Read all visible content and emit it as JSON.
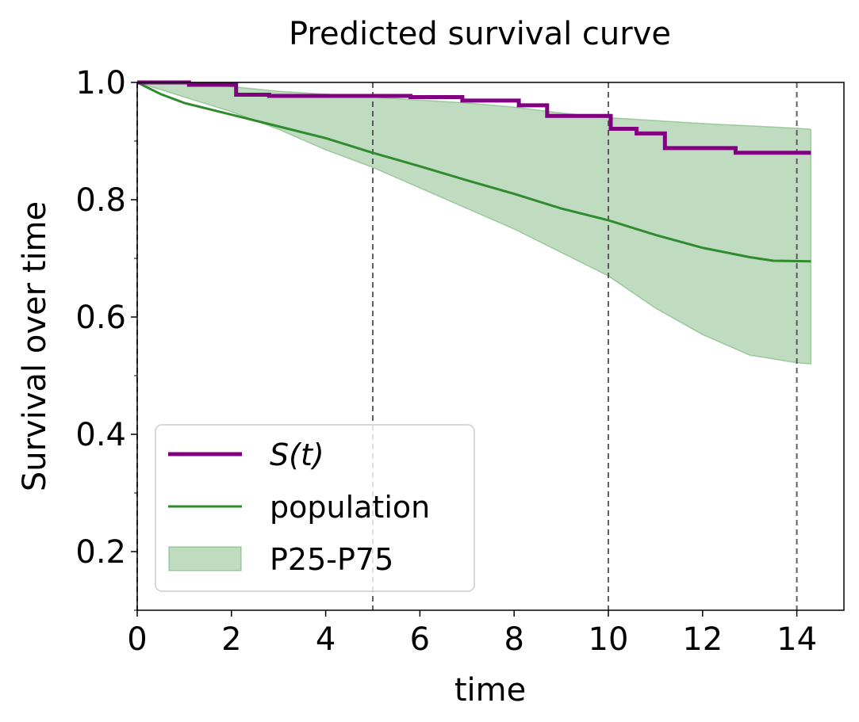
{
  "chart_data": {
    "type": "line",
    "title": "Predicted survival curve",
    "xlabel": "time",
    "ylabel": "Survival over time",
    "xlim": [
      0,
      15
    ],
    "ylim": [
      0.1,
      1.0
    ],
    "x_ticks": [
      "0",
      "2",
      "4",
      "6",
      "8",
      "10",
      "12",
      "14"
    ],
    "y_ticks": [
      "0.2",
      "0.4",
      "0.6",
      "0.8",
      "1.0"
    ],
    "vlines": [
      0,
      5,
      10,
      14
    ],
    "legend_position": "lower-left",
    "colors": {
      "st": "#800080",
      "population": "#2e8b2e",
      "band_fill": "#2e8b2e"
    },
    "series": [
      {
        "name": "S(t)",
        "style": "step",
        "x": [
          0,
          1.1,
          2.1,
          2.8,
          5.8,
          6.9,
          8.1,
          8.7,
          10.05,
          10.6,
          11.2,
          12.7,
          14.3
        ],
        "y": [
          1.0,
          0.996,
          0.979,
          0.977,
          0.975,
          0.969,
          0.961,
          0.943,
          0.921,
          0.913,
          0.888,
          0.88,
          0.88
        ]
      },
      {
        "name": "population",
        "x": [
          0,
          0.5,
          1,
          2,
          3,
          4,
          5,
          6,
          7,
          8,
          9,
          10,
          11,
          12,
          13,
          13.5,
          14.3
        ],
        "y": [
          1.0,
          0.98,
          0.965,
          0.945,
          0.925,
          0.905,
          0.88,
          0.857,
          0.833,
          0.81,
          0.785,
          0.765,
          0.74,
          0.718,
          0.702,
          0.696,
          0.695
        ]
      },
      {
        "name": "P25-P75",
        "style": "band",
        "x": [
          0,
          1,
          2,
          3,
          4,
          5,
          6,
          7,
          8,
          9,
          10,
          11,
          12,
          13,
          14,
          14.3
        ],
        "y_upper": [
          1.0,
          0.998,
          0.993,
          0.985,
          0.98,
          0.975,
          0.97,
          0.965,
          0.958,
          0.948,
          0.94,
          0.935,
          0.93,
          0.926,
          0.922,
          0.92
        ],
        "y_lower": [
          1.0,
          0.975,
          0.95,
          0.92,
          0.885,
          0.855,
          0.82,
          0.785,
          0.75,
          0.71,
          0.67,
          0.615,
          0.57,
          0.535,
          0.522,
          0.52
        ]
      }
    ]
  }
}
